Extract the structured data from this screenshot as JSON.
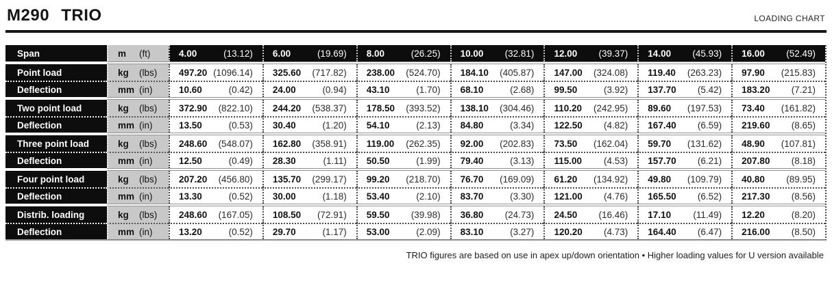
{
  "header": {
    "title": "M290 TRIO",
    "subtitle": "LOADING CHART"
  },
  "footer": {
    "note": "TRIO figures are based on use in apex up/down orientation • Higher loading values for U version available"
  },
  "colors": {
    "row_dark_bg": "#0d0d0d",
    "unit_column_bg": "#c8c8c8",
    "group_separator": "#8f8f8f"
  },
  "table": {
    "groups": [
      {
        "rows": [
          {
            "label": "Span",
            "unit": [
              "m",
              "(ft)"
            ],
            "dark": true,
            "values": [
              [
                "4.00",
                "(13.12)"
              ],
              [
                "6.00",
                "(19.69)"
              ],
              [
                "8.00",
                "(26.25)"
              ],
              [
                "10.00",
                "(32.81)"
              ],
              [
                "12.00",
                "(39.37)"
              ],
              [
                "14.00",
                "(45.93)"
              ],
              [
                "16.00",
                "(52.49)"
              ]
            ]
          }
        ]
      },
      {
        "rows": [
          {
            "label": "Point load",
            "unit": [
              "kg",
              "(lbs)"
            ],
            "values": [
              [
                "497.20",
                "(1096.14)"
              ],
              [
                "325.60",
                "(717.82)"
              ],
              [
                "238.00",
                "(524.70)"
              ],
              [
                "184.10",
                "(405.87)"
              ],
              [
                "147.00",
                "(324.08)"
              ],
              [
                "119.40",
                "(263.23)"
              ],
              [
                "97.90",
                "(215.83)"
              ]
            ]
          },
          {
            "label": "Deflection",
            "unit": [
              "mm",
              "(in)"
            ],
            "values": [
              [
                "10.60",
                "(0.42)"
              ],
              [
                "24.00",
                "(0.94)"
              ],
              [
                "43.10",
                "(1.70)"
              ],
              [
                "68.10",
                "(2.68)"
              ],
              [
                "99.50",
                "(3.92)"
              ],
              [
                "137.70",
                "(5.42)"
              ],
              [
                "183.20",
                "(7.21)"
              ]
            ]
          }
        ]
      },
      {
        "rows": [
          {
            "label": "Two point load",
            "unit": [
              "kg",
              "(lbs)"
            ],
            "values": [
              [
                "372.90",
                "(822.10)"
              ],
              [
                "244.20",
                "(538.37)"
              ],
              [
                "178.50",
                "(393.52)"
              ],
              [
                "138.10",
                "(304.46)"
              ],
              [
                "110.20",
                "(242.95)"
              ],
              [
                "89.60",
                "(197.53)"
              ],
              [
                "73.40",
                "(161.82)"
              ]
            ]
          },
          {
            "label": "Deflection",
            "unit": [
              "mm",
              "(in)"
            ],
            "values": [
              [
                "13.50",
                "(0.53)"
              ],
              [
                "30.40",
                "(1.20)"
              ],
              [
                "54.10",
                "(2.13)"
              ],
              [
                "84.80",
                "(3.34)"
              ],
              [
                "122.50",
                "(4.82)"
              ],
              [
                "167.40",
                "(6.59)"
              ],
              [
                "219.60",
                "(8.65)"
              ]
            ]
          }
        ]
      },
      {
        "rows": [
          {
            "label": "Three point load",
            "unit": [
              "kg",
              "(lbs)"
            ],
            "values": [
              [
                "248.60",
                "(548.07)"
              ],
              [
                "162.80",
                "(358.91)"
              ],
              [
                "119.00",
                "(262.35)"
              ],
              [
                "92.00",
                "(202.83)"
              ],
              [
                "73.50",
                "(162.04)"
              ],
              [
                "59.70",
                "(131.62)"
              ],
              [
                "48.90",
                "(107.81)"
              ]
            ]
          },
          {
            "label": "Deflection",
            "unit": [
              "mm",
              "(in)"
            ],
            "values": [
              [
                "12.50",
                "(0.49)"
              ],
              [
                "28.30",
                "(1.11)"
              ],
              [
                "50.50",
                "(1.99)"
              ],
              [
                "79.40",
                "(3.13)"
              ],
              [
                "115.00",
                "(4.53)"
              ],
              [
                "157.70",
                "(6.21)"
              ],
              [
                "207.80",
                "(8.18)"
              ]
            ]
          }
        ]
      },
      {
        "rows": [
          {
            "label": "Four point load",
            "unit": [
              "kg",
              "(lbs)"
            ],
            "values": [
              [
                "207.20",
                "(456.80)"
              ],
              [
                "135.70",
                "(299.17)"
              ],
              [
                "99.20",
                "(218.70)"
              ],
              [
                "76.70",
                "(169.09)"
              ],
              [
                "61.20",
                "(134.92)"
              ],
              [
                "49.80",
                "(109.79)"
              ],
              [
                "40.80",
                "(89.95)"
              ]
            ]
          },
          {
            "label": "Deflection",
            "unit": [
              "mm",
              "(in)"
            ],
            "values": [
              [
                "13.30",
                "(0.52)"
              ],
              [
                "30.00",
                "(1.18)"
              ],
              [
                "53.40",
                "(2.10)"
              ],
              [
                "83.70",
                "(3.30)"
              ],
              [
                "121.00",
                "(4.76)"
              ],
              [
                "165.50",
                "(6.52)"
              ],
              [
                "217.30",
                "(8.56)"
              ]
            ]
          }
        ]
      },
      {
        "rows": [
          {
            "label": "Distrib. loading",
            "unit": [
              "kg",
              "(lbs)"
            ],
            "values": [
              [
                "248.60",
                "(167.05)"
              ],
              [
                "108.50",
                "(72.91)"
              ],
              [
                "59.50",
                "(39.98)"
              ],
              [
                "36.80",
                "(24.73)"
              ],
              [
                "24.50",
                "(16.46)"
              ],
              [
                "17.10",
                "(11.49)"
              ],
              [
                "12.20",
                "(8.20)"
              ]
            ]
          },
          {
            "label": "Deflection",
            "unit": [
              "mm",
              "(in)"
            ],
            "values": [
              [
                "13.20",
                "(0.52)"
              ],
              [
                "29.70",
                "(1.17)"
              ],
              [
                "53.00",
                "(2.09)"
              ],
              [
                "83.10",
                "(3.27)"
              ],
              [
                "120.20",
                "(4.73)"
              ],
              [
                "164.40",
                "(6.47)"
              ],
              [
                "216.00",
                "(8.50)"
              ]
            ]
          }
        ]
      }
    ]
  }
}
